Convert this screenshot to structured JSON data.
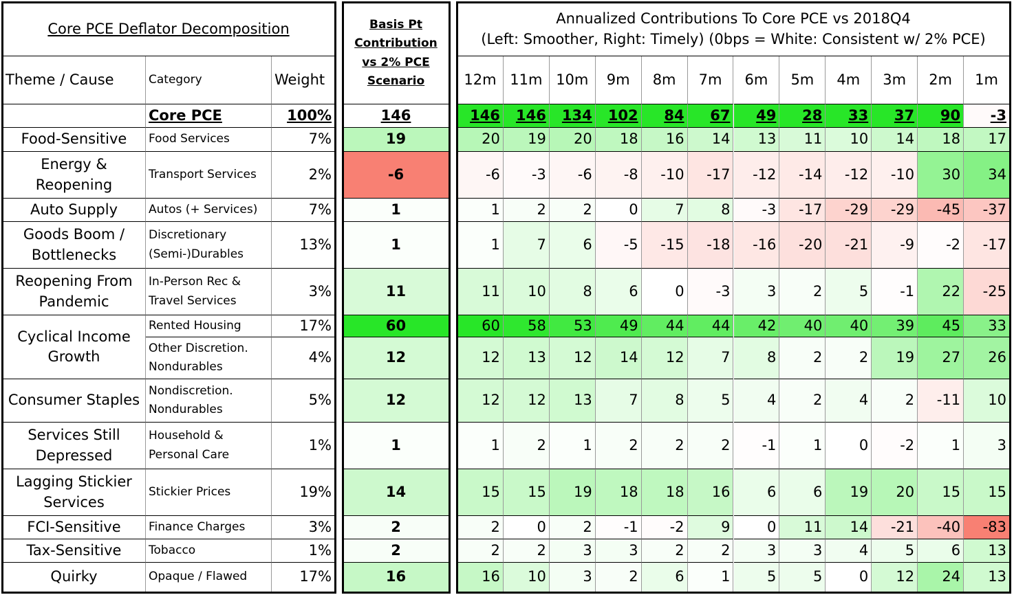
{
  "title": "Core PCE Deflator Decomposition",
  "basis_header": "Basis Pt Contribution vs 2% PCE Scenario",
  "right_title": [
    "Annualized Contributions To Core PCE vs 2018Q4",
    "(Left: Smoother, Right: Timely) (0bps = White: Consistent w/ 2% PCE)"
  ],
  "headers": {
    "theme": "Theme / Cause",
    "category": "Category",
    "weight": "Weight"
  },
  "periods": [
    "12m",
    "11m",
    "10m",
    "9m",
    "8m",
    "7m",
    "6m",
    "5m",
    "4m",
    "3m",
    "2m",
    "1m"
  ],
  "total": {
    "category": "Core PCE",
    "weight": "100%",
    "basis": 146,
    "values": [
      146,
      146,
      134,
      102,
      84,
      67,
      49,
      28,
      33,
      37,
      90,
      -3
    ]
  },
  "rows": [
    {
      "theme": "Food-Sensitive",
      "category": "Food Services",
      "weight": "7%",
      "basis": 19,
      "values": [
        20,
        19,
        20,
        18,
        16,
        14,
        13,
        11,
        10,
        14,
        18,
        17
      ]
    },
    {
      "theme": "Energy & Reopening",
      "category": "Transport Services",
      "weight": "2%",
      "basis": -6,
      "values": [
        -6,
        -3,
        -6,
        -8,
        -10,
        -17,
        -12,
        -14,
        -12,
        -10,
        30,
        34
      ]
    },
    {
      "theme": "Auto Supply",
      "category": "Autos (+ Services)",
      "weight": "7%",
      "basis": 1,
      "values": [
        1,
        2,
        2,
        0,
        7,
        8,
        -3,
        -17,
        -29,
        -29,
        -45,
        -37
      ]
    },
    {
      "theme": "Goods Boom / Bottlenecks",
      "category": "Discretionary (Semi-)Durables",
      "weight": "13%",
      "basis": 1,
      "values": [
        1,
        7,
        6,
        -5,
        -15,
        -18,
        -16,
        -20,
        -21,
        -9,
        -2,
        -17
      ]
    },
    {
      "theme": "Reopening From Pandemic",
      "category": "In-Person Rec & Travel Services",
      "weight": "3%",
      "basis": 11,
      "values": [
        11,
        10,
        8,
        6,
        0,
        -3,
        3,
        2,
        5,
        -1,
        22,
        -25
      ]
    },
    {
      "theme": "Cyclical Income Growth",
      "category": "Rented Housing",
      "weight": "17%",
      "basis": 60,
      "values": [
        60,
        58,
        53,
        49,
        44,
        44,
        42,
        40,
        40,
        39,
        45,
        33
      ]
    },
    {
      "category": "Other Discretion. Nondurables",
      "weight": "4%",
      "basis": 12,
      "values": [
        12,
        13,
        12,
        14,
        12,
        7,
        8,
        2,
        2,
        19,
        27,
        26
      ]
    },
    {
      "theme": "Consumer Staples",
      "category": "Nondiscretion. Nondurables",
      "weight": "5%",
      "basis": 12,
      "values": [
        12,
        12,
        13,
        7,
        8,
        5,
        4,
        2,
        4,
        2,
        -11,
        10
      ]
    },
    {
      "theme": "Services Still Depressed",
      "category": "Household & Personal Care",
      "weight": "1%",
      "basis": 1,
      "values": [
        1,
        2,
        1,
        2,
        2,
        2,
        -1,
        1,
        0,
        -2,
        1,
        3
      ]
    },
    {
      "theme": "Lagging Stickier Services",
      "category": "Stickier Prices",
      "weight": "19%",
      "basis": 14,
      "values": [
        15,
        15,
        19,
        18,
        18,
        16,
        6,
        6,
        19,
        20,
        15,
        15
      ]
    },
    {
      "theme": "FCI-Sensitive",
      "category": "Finance Charges",
      "weight": "3%",
      "basis": 2,
      "values": [
        2,
        0,
        2,
        -1,
        -2,
        9,
        0,
        11,
        14,
        -21,
        -40,
        -83
      ]
    },
    {
      "theme": "Tax-Sensitive",
      "category": "Tobacco",
      "weight": "1%",
      "basis": 2,
      "values": [
        2,
        2,
        3,
        3,
        2,
        2,
        3,
        3,
        4,
        5,
        6,
        13
      ]
    },
    {
      "theme": "Quirky",
      "category": "Opaque / Flawed",
      "weight": "17%",
      "basis": 16,
      "values": [
        16,
        10,
        3,
        2,
        6,
        1,
        5,
        5,
        0,
        12,
        24,
        13
      ]
    }
  ]
}
